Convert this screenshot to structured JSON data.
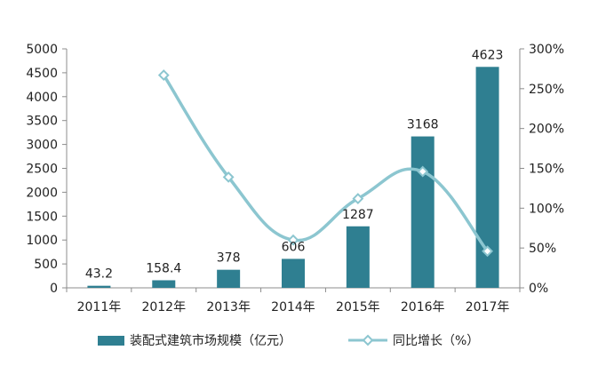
{
  "chart_data": {
    "type": "bar",
    "categories": [
      "2011年",
      "2012年",
      "2013年",
      "2014年",
      "2015年",
      "2016年",
      "2017年"
    ],
    "series": [
      {
        "name": "装配式建筑市场规模（亿元）",
        "type": "bar",
        "axis": "left",
        "values": [
          43.2,
          158.4,
          378,
          606,
          1287,
          3168,
          4623
        ],
        "color": "#2f7f91"
      },
      {
        "name": "同比增长（%）",
        "type": "line",
        "axis": "right",
        "values": [
          null,
          267,
          139,
          60,
          112,
          146,
          46
        ],
        "color": "#8cc6d0"
      }
    ],
    "data_labels": [
      "43.2",
      "158.4",
      "378",
      "606",
      "1287",
      "3168",
      "4623"
    ],
    "y_left": {
      "ylim": [
        0,
        5000
      ],
      "ticks": [
        "0",
        "500",
        "1000",
        "1500",
        "2000",
        "2500",
        "3000",
        "3500",
        "4000",
        "4500",
        "5000"
      ]
    },
    "y_right": {
      "ylim": [
        0,
        300
      ],
      "ticks": [
        "0%",
        "50%",
        "100%",
        "150%",
        "200%",
        "250%",
        "300%"
      ]
    },
    "title": "",
    "xlabel": "",
    "ylabel": "",
    "grid": false,
    "legend_position": "bottom"
  }
}
